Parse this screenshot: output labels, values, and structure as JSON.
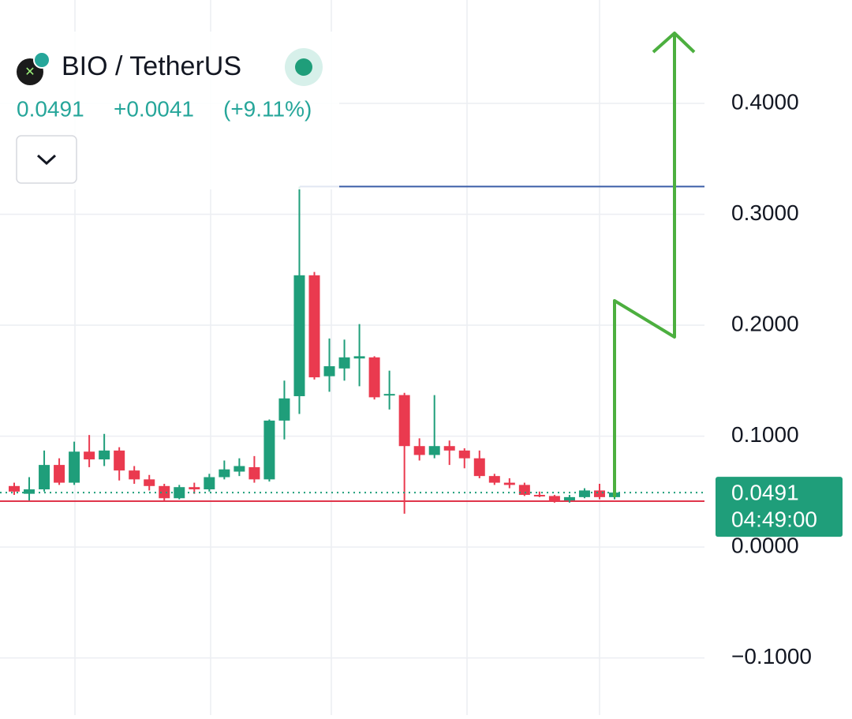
{
  "header": {
    "symbol": "BIO / TetherUS",
    "price": "0.0491",
    "change": "+0.0041",
    "change_percent": "(+9.11%)",
    "countdown": "04:49:00"
  },
  "chart_data": {
    "type": "candlestick",
    "up_color": "#1f9e7a",
    "down_color": "#ea3a4f",
    "open": [
      0.055,
      0.048,
      0.052,
      0.074,
      0.058,
      0.086,
      0.079,
      0.087,
      0.069,
      0.061,
      0.055,
      0.044,
      0.054,
      0.052,
      0.063,
      0.068,
      0.072,
      0.061,
      0.114,
      0.136,
      0.245,
      0.154,
      0.161,
      0.17,
      0.171,
      0.137,
      0.137,
      0.091,
      0.083,
      0.091,
      0.087,
      0.08,
      0.064,
      0.058,
      0.056,
      0.047,
      0.046,
      0.042,
      0.045,
      0.051,
      0.045
    ],
    "high": [
      0.058,
      0.063,
      0.087,
      0.08,
      0.095,
      0.101,
      0.102,
      0.09,
      0.073,
      0.065,
      0.057,
      0.056,
      0.058,
      0.066,
      0.078,
      0.08,
      0.082,
      0.115,
      0.15,
      0.325,
      0.248,
      0.188,
      0.187,
      0.201,
      0.172,
      0.159,
      0.139,
      0.098,
      0.137,
      0.096,
      0.089,
      0.087,
      0.066,
      0.062,
      0.058,
      0.05,
      0.047,
      0.047,
      0.053,
      0.057,
      0.052
    ],
    "low": [
      0.047,
      0.042,
      0.05,
      0.056,
      0.056,
      0.072,
      0.073,
      0.06,
      0.057,
      0.051,
      0.042,
      0.043,
      0.048,
      0.05,
      0.061,
      0.064,
      0.058,
      0.059,
      0.097,
      0.12,
      0.151,
      0.14,
      0.15,
      0.145,
      0.133,
      0.124,
      0.03,
      0.078,
      0.08,
      0.074,
      0.071,
      0.062,
      0.056,
      0.053,
      0.046,
      0.045,
      0.04,
      0.04,
      0.044,
      0.043,
      0.043
    ],
    "close": [
      0.05,
      0.052,
      0.074,
      0.058,
      0.086,
      0.079,
      0.087,
      0.069,
      0.061,
      0.055,
      0.044,
      0.054,
      0.052,
      0.063,
      0.07,
      0.073,
      0.061,
      0.114,
      0.134,
      0.245,
      0.153,
      0.163,
      0.171,
      0.172,
      0.135,
      0.138,
      0.091,
      0.083,
      0.091,
      0.087,
      0.08,
      0.064,
      0.058,
      0.056,
      0.047,
      0.046,
      0.041,
      0.045,
      0.051,
      0.045,
      0.0491
    ],
    "ylim": [
      -0.1515,
      0.4932
    ],
    "yticks": [
      {
        "value": 0.4,
        "label": "0.4000"
      },
      {
        "value": 0.3,
        "label": "0.3000"
      },
      {
        "value": 0.2,
        "label": "0.2000"
      },
      {
        "value": 0.1,
        "label": "0.1000"
      },
      {
        "value": 0,
        "label": "0.0000"
      },
      {
        "value": -0.1,
        "label": "−0.1000"
      }
    ],
    "grid": true,
    "levels": [
      {
        "value": 0.325,
        "color": "#3b5ea8"
      },
      {
        "value": 0.0413,
        "color": "#e0354b"
      }
    ]
  }
}
